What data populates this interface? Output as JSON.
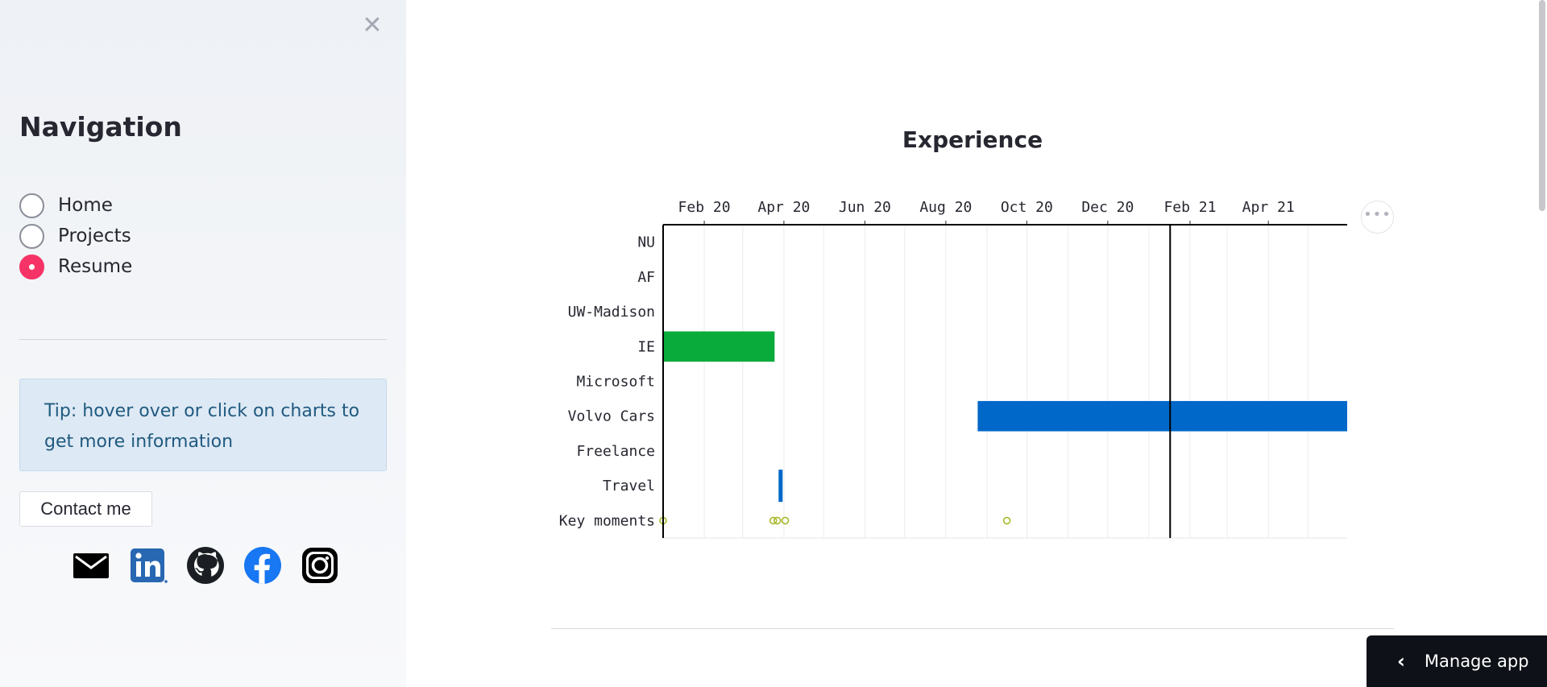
{
  "sidebar": {
    "close_symbol": "✕",
    "title": "Navigation",
    "nav_options": [
      {
        "label": "Home",
        "selected": false
      },
      {
        "label": "Projects",
        "selected": false
      },
      {
        "label": "Resume",
        "selected": true
      }
    ],
    "tip": "Tip: hover over or click on charts to get more information",
    "contact_label": "Contact me",
    "social_icons": [
      "email-icon",
      "linkedin-icon",
      "github-icon",
      "facebook-icon",
      "instagram-icon"
    ]
  },
  "main": {
    "title": "Experience",
    "more_symbol": "•••"
  },
  "manage_app": {
    "chevron": "‹",
    "label": "Manage app"
  },
  "colors": {
    "accent": "#f63366",
    "green_bar": "#09ab3b",
    "blue_bar": "#0068c9",
    "key_moment": "#a8b828"
  },
  "chart_data": {
    "type": "gantt",
    "title": "Experience",
    "x_axis": {
      "type": "date",
      "domain": [
        "2020-01-01",
        "2021-05-31"
      ],
      "tick_labels": [
        {
          "label": "Feb 20",
          "date": "2020-02-01"
        },
        {
          "label": "Apr 20",
          "date": "2020-04-01"
        },
        {
          "label": "Jun 20",
          "date": "2020-06-01"
        },
        {
          "label": "Aug 20",
          "date": "2020-08-01"
        },
        {
          "label": "Oct 20",
          "date": "2020-10-01"
        },
        {
          "label": "Dec 20",
          "date": "2020-12-01"
        },
        {
          "label": "Feb 21",
          "date": "2021-02-01"
        },
        {
          "label": "Apr 21",
          "date": "2021-04-01"
        }
      ],
      "position": "top"
    },
    "y_categories": [
      "NU",
      "AF",
      "UW-Madison",
      "IE",
      "Microsoft",
      "Volvo Cars",
      "Freelance",
      "Travel",
      "Key moments"
    ],
    "bars": [
      {
        "category": "IE",
        "start": "2020-01-01",
        "end": "2020-03-25",
        "color": "#09ab3b"
      },
      {
        "category": "Volvo Cars",
        "start": "2020-08-25",
        "end": "2021-05-31",
        "color": "#0068c9"
      },
      {
        "category": "Travel",
        "start": "2020-03-28",
        "end": "2020-03-31",
        "color": "#0068c9"
      }
    ],
    "key_moments": [
      "2020-01-01",
      "2020-03-24",
      "2020-03-27",
      "2020-04-02",
      "2020-09-16"
    ],
    "today_marker": "2021-01-17",
    "grid": true
  }
}
